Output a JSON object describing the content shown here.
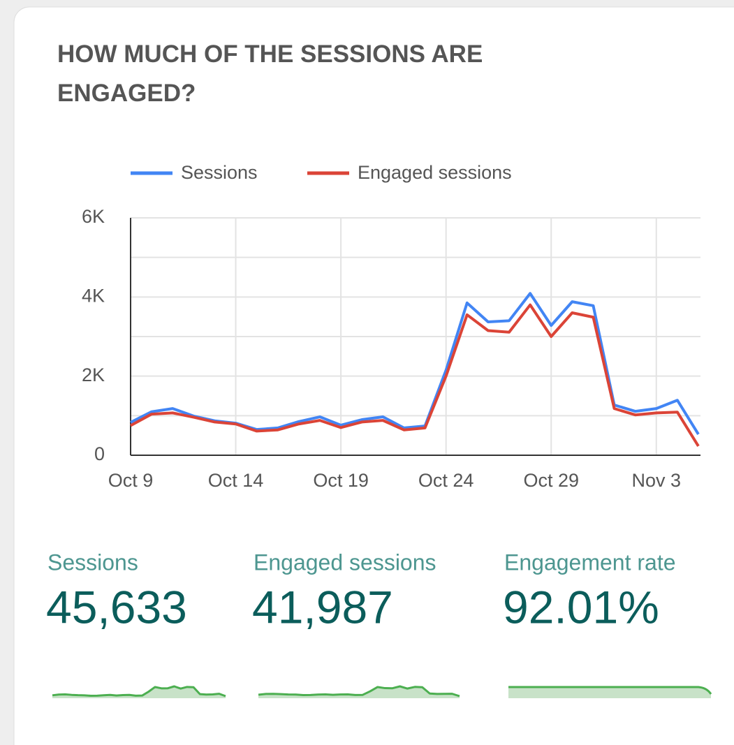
{
  "chart_data": {
    "type": "line",
    "title": "HOW MUCH OF THE SESSIONS ARE ENGAGED?",
    "categories": [
      "Oct 9",
      null,
      null,
      null,
      null,
      "Oct 14",
      null,
      null,
      null,
      null,
      "Oct 19",
      null,
      null,
      null,
      null,
      "Oct 24",
      null,
      null,
      null,
      null,
      "Oct 29",
      null,
      null,
      null,
      null,
      "Nov 3",
      null,
      null
    ],
    "series": [
      {
        "name": "Sessions",
        "color": "#4285f4",
        "values": [
          830,
          1100,
          1180,
          990,
          870,
          810,
          650,
          690,
          850,
          970,
          760,
          900,
          970,
          690,
          740,
          2150,
          3850,
          3370,
          3400,
          4090,
          3280,
          3880,
          3780,
          1270,
          1110,
          1180,
          1390,
          530
        ]
      },
      {
        "name": "Engaged sessions",
        "color": "#db4437",
        "values": [
          750,
          1040,
          1070,
          960,
          840,
          790,
          610,
          640,
          790,
          880,
          700,
          840,
          880,
          640,
          690,
          2000,
          3550,
          3150,
          3110,
          3800,
          3000,
          3600,
          3490,
          1180,
          1020,
          1070,
          1090,
          230
        ]
      }
    ],
    "ylim": [
      0,
      6000
    ],
    "yticks": [
      0,
      {
        "value": 2000,
        "label": "2K"
      },
      {
        "value": 4000,
        "label": "4K"
      },
      {
        "value": 6000,
        "label": "6K"
      }
    ],
    "y_minor_ticks": [
      1000,
      3000,
      5000
    ],
    "grid": true,
    "legend": "top"
  },
  "scorecards": [
    {
      "label": "Sessions",
      "value": "45,633"
    },
    {
      "label": "Engaged sessions",
      "value": "41,987"
    },
    {
      "label": "Engagement rate",
      "value": "92.01%"
    }
  ]
}
